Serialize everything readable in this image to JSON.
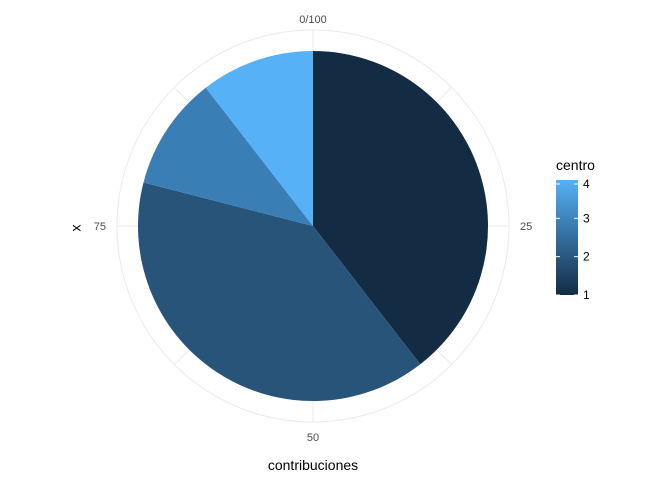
{
  "chart_data": {
    "type": "pie",
    "coord": "polar",
    "xlabel": "contribuciones",
    "ylabel": "x",
    "theta_ticks": [
      {
        "value": 0,
        "label": "0/100"
      },
      {
        "value": 25,
        "label": "25"
      },
      {
        "value": 50,
        "label": "50"
      },
      {
        "value": 75,
        "label": "75"
      }
    ],
    "theta_range": [
      0,
      100
    ],
    "slices": [
      {
        "centro": 1,
        "value": 39.5,
        "color": "#132b43"
      },
      {
        "centro": 2,
        "value": 39.5,
        "color": "#28547a"
      },
      {
        "centro": 3,
        "value": 10.5,
        "color": "#3a7eb6"
      },
      {
        "centro": 4,
        "value": 10.5,
        "color": "#56b1f7"
      }
    ],
    "legend": {
      "title": "centro",
      "position": "right",
      "type": "colorbar",
      "range": [
        1,
        4
      ],
      "ticks": [
        "1",
        "2",
        "3",
        "4"
      ],
      "low_color": "#132b43",
      "high_color": "#56b1f7"
    },
    "grid": true
  }
}
